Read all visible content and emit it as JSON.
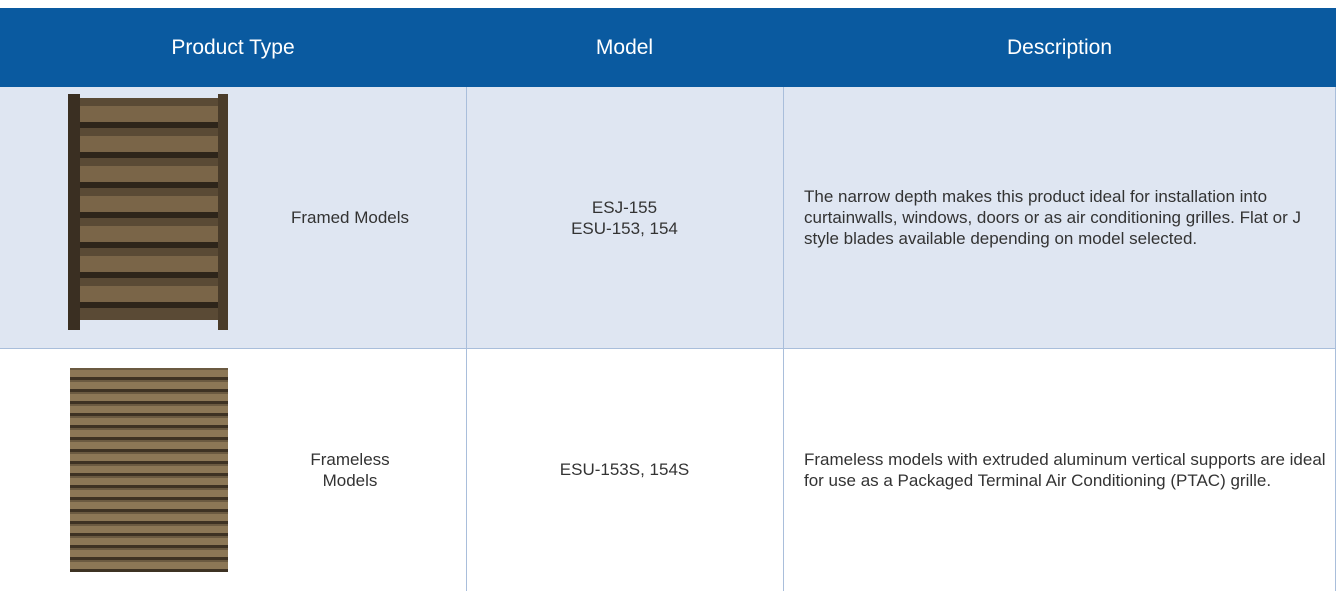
{
  "table": {
    "headers": [
      "Product Type",
      "Model",
      "Description"
    ],
    "rows": [
      {
        "product_type": "Framed Models",
        "model": [
          "ESJ-155",
          "ESU-153, 154"
        ],
        "description": "The narrow depth makes this product ideal for installation into curtainwalls, windows, doors or as air conditioning grilles. Flat or J style blades available depending on model selected."
      },
      {
        "product_type": "Frameless Models",
        "model": [
          "ESU-153S, 154S"
        ],
        "description": "Frameless models with extruded aluminum vertical supports are ideal for use as a Packaged Terminal Air Conditioning (PTAC) grille."
      }
    ]
  }
}
